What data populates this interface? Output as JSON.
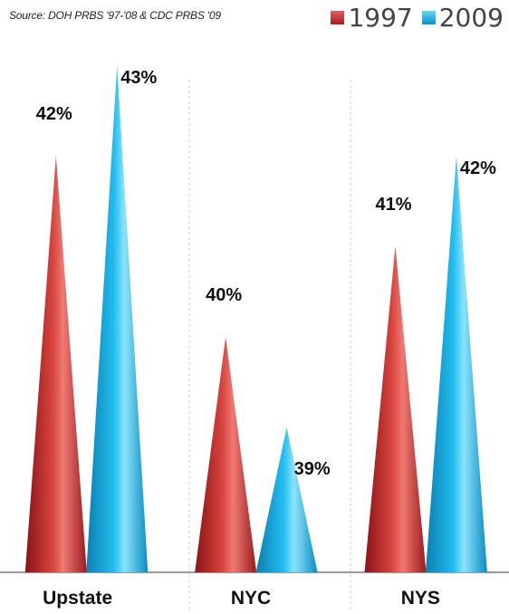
{
  "source_note": "Source: DOH PRBS '97-'08 & CDC PRBS '09",
  "colors": {
    "series_1997": "#c9302c",
    "series_2009": "#1fb7e8"
  },
  "chart_data": {
    "type": "bar",
    "bar_shape": "cone",
    "title": "",
    "xlabel": "",
    "ylabel": "",
    "categories": [
      "Upstate",
      "NYC",
      "NYS"
    ],
    "series": [
      {
        "name": "1997",
        "values": [
          42,
          40,
          41
        ],
        "labels": [
          "42%",
          "40%",
          "41%"
        ]
      },
      {
        "name": "2009",
        "values": [
          43,
          39,
          42
        ],
        "labels": [
          "43%",
          "39%",
          "42%"
        ]
      }
    ],
    "ylim": [
      37.4,
      43.1
    ],
    "grid": false,
    "legend_position": "top-right"
  }
}
